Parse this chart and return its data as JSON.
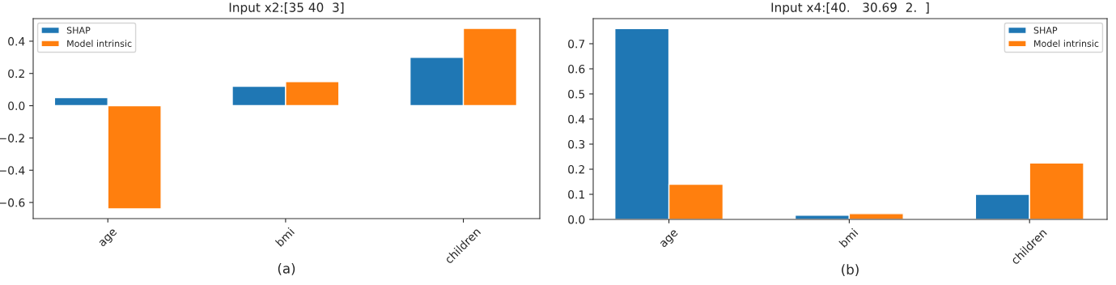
{
  "chart_data": [
    {
      "type": "bar",
      "title": "Input x2:[35 40  3]",
      "categories": [
        "age",
        "bmi",
        "children"
      ],
      "series": [
        {
          "name": "SHAP",
          "color": "#1f77b4",
          "values": [
            0.05,
            0.12,
            0.3
          ]
        },
        {
          "name": "Model intrinsic",
          "color": "#ff7f0e",
          "values": [
            -0.64,
            0.15,
            0.48
          ]
        }
      ],
      "ylim": [
        -0.7,
        0.54
      ],
      "yticks": [
        {
          "value": -0.6,
          "label": "−0.6"
        },
        {
          "value": -0.4,
          "label": "−0.4"
        },
        {
          "value": -0.2,
          "label": "−0.2"
        },
        {
          "value": 0,
          "label": "0.0"
        },
        0.2,
        0.4
      ],
      "legend": "top left",
      "grid": false,
      "annotations": [
        "(a)"
      ]
    },
    {
      "type": "bar",
      "title": "Input x4:[40.   30.69  2.  ]",
      "categories": [
        "age",
        "bmi",
        "children"
      ],
      "series": [
        {
          "name": "SHAP",
          "color": "#1f77b4",
          "values": [
            0.76,
            0.017,
            0.1
          ]
        },
        {
          "name": "Model intrinsic",
          "color": "#ff7f0e",
          "values": [
            0.14,
            0.023,
            0.225
          ]
        }
      ],
      "ylim": [
        0,
        0.8
      ],
      "yticks": [
        {
          "value": 0,
          "label": "0.0"
        },
        0.1,
        0.2,
        0.3,
        0.4,
        0.5,
        0.6,
        0.7
      ],
      "legend": "top right",
      "grid": false,
      "annotations": [
        "(b)"
      ]
    }
  ]
}
